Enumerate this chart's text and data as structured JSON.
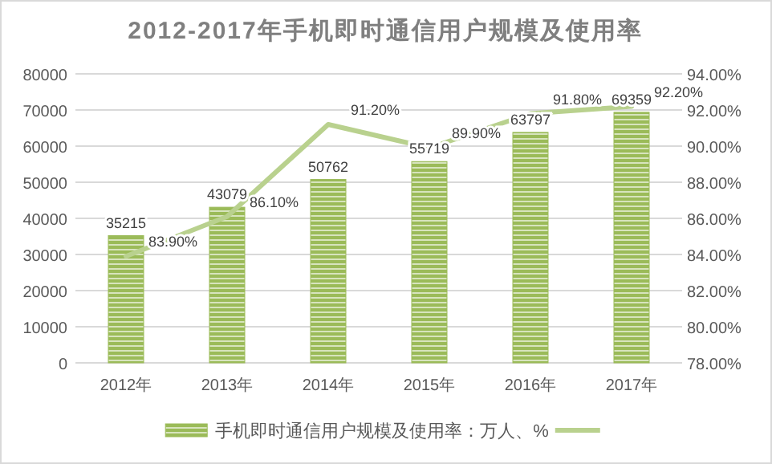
{
  "chart_data": {
    "type": "bar",
    "title": "2012-2017年手机即时通信用户规模及使用率",
    "categories": [
      "2012年",
      "2013年",
      "2014年",
      "2015年",
      "2016年",
      "2017年"
    ],
    "series": [
      {
        "name": "手机即时通信用户规模及使用率：万人、%",
        "color": "#9bbb59",
        "values": [
          35215,
          43079,
          50762,
          55719,
          63797,
          69359
        ],
        "value_labels": [
          "35215",
          "43079",
          "50762",
          "55719",
          "63797",
          "69359"
        ]
      },
      {
        "type": "line",
        "axis": "y2",
        "color": "#b9d18e",
        "values": [
          83.9,
          86.1,
          91.2,
          89.9,
          91.8,
          92.2
        ],
        "value_labels": [
          "83.90%",
          "86.10%",
          "91.20%",
          "89.90%",
          "91.80%",
          "92.20%"
        ]
      }
    ],
    "ylim": [
      0,
      80000
    ],
    "yticks": [
      0,
      10000,
      20000,
      30000,
      40000,
      50000,
      60000,
      70000,
      80000
    ],
    "y2lim": [
      78,
      94
    ],
    "y2ticks": [
      {
        "value": 78,
        "label": "78.00%"
      },
      {
        "value": 80,
        "label": "80.00%"
      },
      {
        "value": 82,
        "label": "82.00%"
      },
      {
        "value": 84,
        "label": "84.00%"
      },
      {
        "value": 86,
        "label": "86.00%"
      },
      {
        "value": 88,
        "label": "88.00%"
      },
      {
        "value": 90,
        "label": "90.00%"
      },
      {
        "value": 92,
        "label": "92.00%"
      },
      {
        "value": 94,
        "label": "94.00%"
      }
    ],
    "grid": "y",
    "legend": "bottom"
  }
}
